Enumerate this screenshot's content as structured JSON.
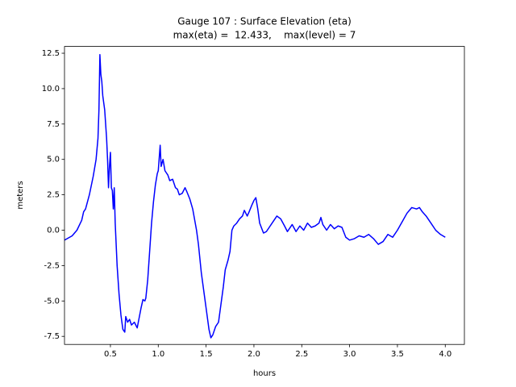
{
  "chart_data": {
    "type": "line",
    "title": "Gauge 107 : Surface Elevation (eta)",
    "subtitle": "max(eta) =  12.433,    max(level) = 7",
    "x_label": "hours",
    "y_label": "meters",
    "xlim": [
      0.02,
      4.2
    ],
    "ylim": [
      -8.07,
      12.98
    ],
    "xticks": [
      0.5,
      {
        "value": 1,
        "label": "1.0"
      },
      1.5,
      {
        "value": 2,
        "label": "2.0"
      },
      2.5,
      {
        "value": 3,
        "label": "3.0"
      },
      3.5,
      {
        "value": 4,
        "label": "4.0"
      }
    ],
    "yticks": [
      -7.5,
      {
        "value": -5,
        "label": "-5.0"
      },
      -2.5,
      {
        "value": 0,
        "label": "0.0"
      },
      2.5,
      {
        "value": 5,
        "label": "5.0"
      },
      7.5,
      {
        "value": 10,
        "label": "10.0"
      },
      12.5
    ],
    "x": [
      0.02,
      0.1,
      0.15,
      0.2,
      0.22,
      0.24,
      0.28,
      0.32,
      0.35,
      0.37,
      0.38,
      0.39,
      0.4,
      0.41,
      0.42,
      0.44,
      0.46,
      0.47,
      0.48,
      0.49,
      0.5,
      0.51,
      0.52,
      0.53,
      0.54,
      0.55,
      0.57,
      0.59,
      0.61,
      0.63,
      0.65,
      0.66,
      0.68,
      0.7,
      0.72,
      0.75,
      0.78,
      0.8,
      0.82,
      0.84,
      0.86,
      0.87,
      0.89,
      0.91,
      0.93,
      0.95,
      0.97,
      0.99,
      1.0,
      1.02,
      1.03,
      1.05,
      1.07,
      1.1,
      1.12,
      1.15,
      1.18,
      1.2,
      1.22,
      1.25,
      1.28,
      1.3,
      1.33,
      1.36,
      1.4,
      1.42,
      1.45,
      1.48,
      1.5,
      1.53,
      1.55,
      1.57,
      1.6,
      1.63,
      1.65,
      1.68,
      1.7,
      1.73,
      1.75,
      1.77,
      1.79,
      1.82,
      1.85,
      1.88,
      1.9,
      1.93,
      1.95,
      1.98,
      2.0,
      2.02,
      2.04,
      2.06,
      2.1,
      2.13,
      2.16,
      2.2,
      2.24,
      2.28,
      2.32,
      2.35,
      2.4,
      2.44,
      2.48,
      2.52,
      2.56,
      2.6,
      2.64,
      2.68,
      2.7,
      2.72,
      2.76,
      2.8,
      2.84,
      2.88,
      2.92,
      2.96,
      3.0,
      3.05,
      3.1,
      3.15,
      3.2,
      3.25,
      3.3,
      3.35,
      3.4,
      3.45,
      3.5,
      3.55,
      3.6,
      3.65,
      3.7,
      3.73,
      3.76,
      3.8,
      3.85,
      3.9,
      3.95,
      4.0
    ],
    "series": [
      {
        "name": "eta",
        "color": "#0000ff",
        "values": [
          -0.7,
          -0.4,
          0.0,
          0.7,
          1.3,
          1.5,
          2.5,
          3.8,
          5.0,
          6.5,
          8.5,
          12.4,
          11.0,
          10.5,
          9.5,
          8.5,
          6.5,
          5.0,
          3.0,
          4.5,
          5.5,
          3.0,
          2.8,
          1.5,
          3.0,
          0.5,
          -2.5,
          -4.5,
          -6.0,
          -7.0,
          -7.2,
          -6.1,
          -6.5,
          -6.3,
          -6.7,
          -6.5,
          -6.9,
          -6.2,
          -5.5,
          -4.9,
          -5.0,
          -4.8,
          -3.5,
          -1.5,
          0.5,
          2.0,
          3.2,
          4.0,
          4.2,
          6.0,
          4.5,
          5.0,
          4.2,
          3.9,
          3.5,
          3.6,
          3.0,
          2.9,
          2.5,
          2.6,
          3.0,
          2.7,
          2.2,
          1.5,
          0.0,
          -1.0,
          -3.0,
          -4.5,
          -5.5,
          -7.0,
          -7.6,
          -7.4,
          -6.8,
          -6.5,
          -5.5,
          -4.0,
          -2.8,
          -2.1,
          -1.5,
          0.0,
          0.3,
          0.5,
          0.8,
          1.0,
          1.4,
          1.0,
          1.3,
          1.8,
          2.1,
          2.3,
          1.5,
          0.5,
          -0.2,
          -0.1,
          0.2,
          0.6,
          1.0,
          0.8,
          0.3,
          -0.1,
          0.4,
          -0.1,
          0.3,
          0.0,
          0.5,
          0.2,
          0.3,
          0.5,
          0.9,
          0.4,
          0.0,
          0.4,
          0.1,
          0.3,
          0.2,
          -0.5,
          -0.7,
          -0.6,
          -0.4,
          -0.5,
          -0.3,
          -0.6,
          -1.0,
          -0.8,
          -0.3,
          -0.5,
          0.0,
          0.6,
          1.2,
          1.6,
          1.5,
          1.6,
          1.3,
          1.0,
          0.5,
          0.0,
          -0.3,
          -0.5
        ]
      }
    ]
  }
}
